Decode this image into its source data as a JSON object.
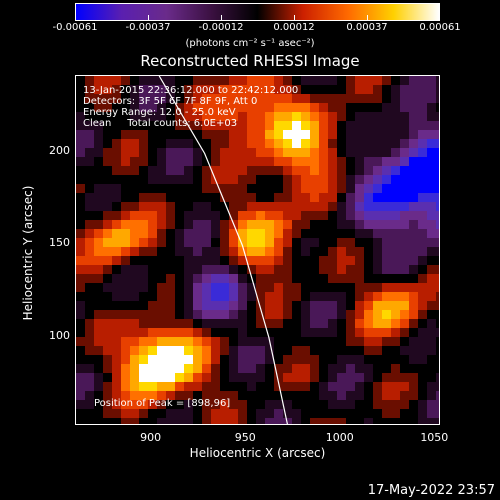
{
  "colorbar": {
    "colors": [
      "#0000ff",
      "#5a1fb0",
      "#6a2b8a",
      "#3a1040",
      "#000000",
      "#cc2000",
      "#ff6a00",
      "#ffd000",
      "#ffffff"
    ],
    "ticks": [
      "-0.00061",
      "-0.00037",
      "-0.00012",
      "0.00012",
      "0.00037",
      "0.00061"
    ],
    "unit": "(photons cm⁻² s⁻¹ asec⁻²)"
  },
  "chart_data": {
    "type": "heatmap",
    "title": "Reconstructed RHESSI Image",
    "xlabel": "Heliocentric X (arcsec)",
    "ylabel": "Heliocentric Y (arcsec)",
    "xlim": [
      860,
      1053
    ],
    "ylim": [
      52,
      242
    ],
    "xticks": [
      "900",
      "950",
      "1000",
      "1050"
    ],
    "xtick_values": [
      900,
      950,
      1000,
      1050
    ],
    "yticks": [
      "100",
      "150",
      "200"
    ],
    "ytick_values": [
      100,
      150,
      200
    ],
    "clim": [
      -0.00061,
      0.00061
    ],
    "limb_curve": {
      "x": [
        904,
        928,
        948,
        962,
        972
      ],
      "y": [
        242,
        200,
        150,
        100,
        52
      ]
    },
    "peak": {
      "x": 898,
      "y": 96
    }
  },
  "annotations": {
    "line1": "13-Jan-2015 22:36:12.000 to 22:42:12.000",
    "line2": "Detectors: 3F 5F 6F 7F 8F 9F, Att 0",
    "line3": "Energy Range: 12.0 - 25.0 keV",
    "line4": "Clean     Total counts: 6.0E+03",
    "peak_label": "Position of Peak = [898,96]"
  },
  "timestamp": "17-May-2022 23:57"
}
